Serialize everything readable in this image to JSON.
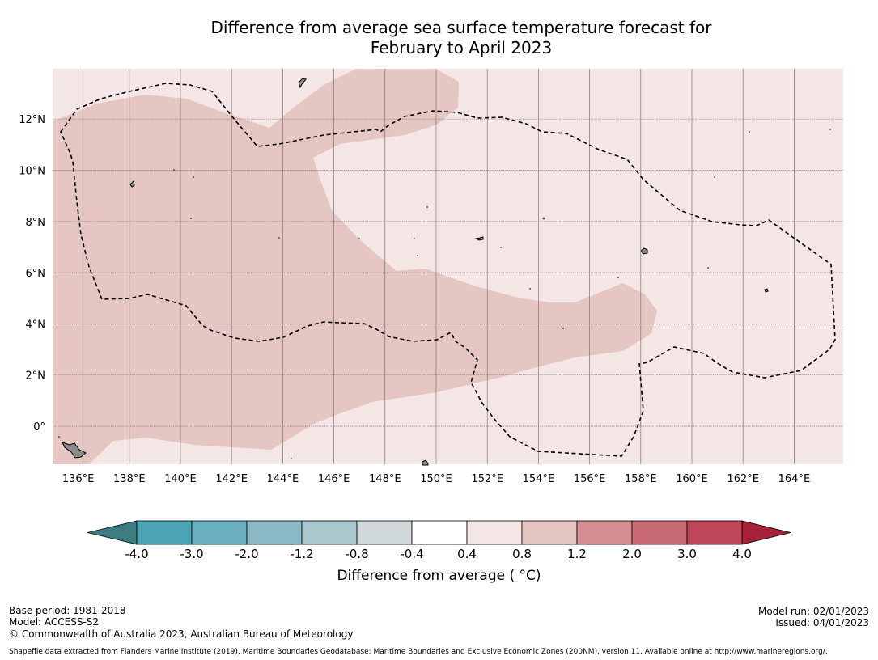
{
  "title": {
    "line1": "Difference from average sea surface temperature forecast for",
    "line2": "February to April 2023"
  },
  "map": {
    "lon_ticks": [
      "136°E",
      "138°E",
      "140°E",
      "142°E",
      "144°E",
      "146°E",
      "148°E",
      "150°E",
      "152°E",
      "154°E",
      "156°E",
      "158°E",
      "160°E",
      "162°E",
      "164°E"
    ],
    "lat_ticks": [
      "12°N",
      "10°N",
      "8°N",
      "6°N",
      "4°N",
      "2°N",
      "0°"
    ],
    "lon_range": [
      135,
      166
    ],
    "lat_range": [
      -1.5,
      14
    ],
    "colors": {
      "anomaly_0_4_to_0_8": "#f4e6e5",
      "anomaly_0_8_to_1_2": "#e6c6c2",
      "land": "#8c8c8c",
      "eez_boundary": "#000000"
    }
  },
  "colorbar": {
    "tick_labels": [
      "-4.0",
      "-3.0",
      "-2.0",
      "-1.2",
      "-0.8",
      "-0.4",
      "0.4",
      "0.8",
      "1.2",
      "2.0",
      "3.0",
      "4.0"
    ],
    "colors": [
      "#4ba5b5",
      "#6aafbd",
      "#8ab9c5",
      "#a9c8ce",
      "#d1d8da",
      "#ffffff",
      "#f4e6e5",
      "#e6c6c2",
      "#d58d94",
      "#c86a73",
      "#bd4758"
    ],
    "under_color": "#3d7d82",
    "over_color": "#a8213a",
    "label": "Difference from average ( °C)"
  },
  "footer": {
    "base_period": "Base period: 1981-2018",
    "model": "Model: ACCESS-S2",
    "model_run": "Model run: 02/01/2023",
    "issued": "Issued: 04/01/2023",
    "copyright": "© Commonwealth of Australia 2023, Australian Bureau of Meteorology",
    "shapefile": "Shapefile data extracted from Flanders Marine Institute (2019), Maritime Boundaries Geodatabase: Maritime Boundaries and Exclusive Economic Zones (200NM), version 11. Available online at http://www.marineregions.org/."
  }
}
